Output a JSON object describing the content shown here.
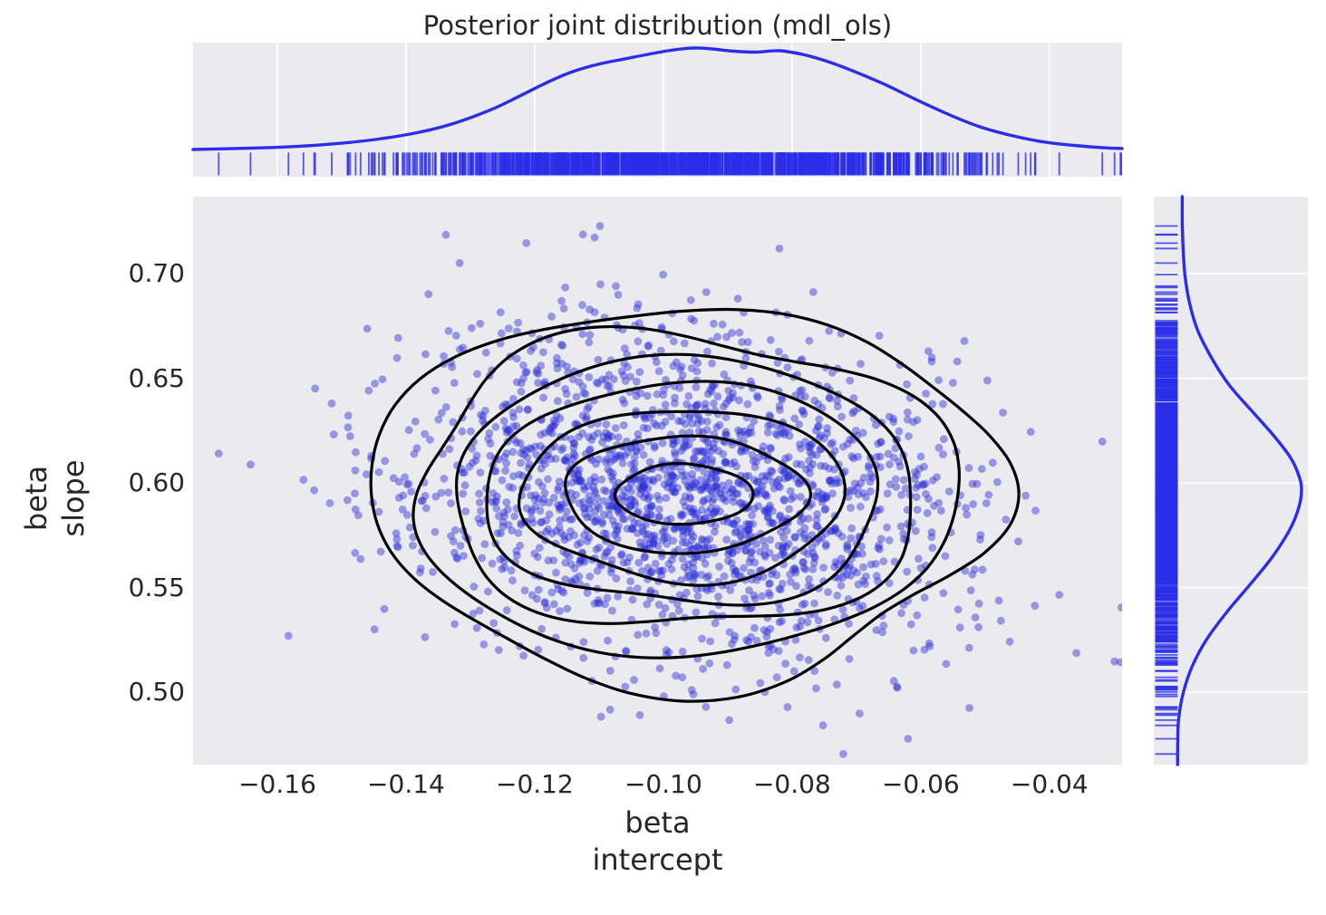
{
  "title": "Posterior joint distribution (mdl_ols)",
  "colors": {
    "figure_background": "#ffffff",
    "axes_background": "#ebebef",
    "gridline": "#ffffff",
    "kde_line_blue": "#2a2de9",
    "rug_blue": "#2a2de9",
    "scatter_blue": "#2b2fd6",
    "contour_black": "#000000",
    "text": "#262626"
  },
  "chart_data": {
    "type": "scatter",
    "subtype": "seaborn-jointplot: posterior scatter + 2D KDE contours, marginal KDE curves with rug plots",
    "title": "Posterior joint distribution (mdl_ols)",
    "x_axis": {
      "label": "beta intercept",
      "label_lines": [
        "beta",
        "intercept"
      ],
      "tick_values": [
        -0.16,
        -0.14,
        -0.12,
        -0.1,
        -0.08,
        -0.06,
        -0.04
      ],
      "tick_labels": [
        "−0.16",
        "−0.14",
        "−0.12",
        "−0.10",
        "−0.08",
        "−0.06",
        "−0.04"
      ],
      "range": [
        -0.1731,
        -0.0287
      ],
      "grid": "vertical white gridlines in top marginal axes only"
    },
    "y_axis": {
      "label": "beta slope",
      "label_lines": [
        "beta",
        "slope"
      ],
      "tick_values": [
        0.5,
        0.55,
        0.6,
        0.65,
        0.7
      ],
      "tick_labels": [
        "0.50",
        "0.55",
        "0.60",
        "0.65",
        "0.70"
      ],
      "range": [
        0.4654,
        0.7368
      ],
      "grid": "horizontal white gridlines in right marginal axes only"
    },
    "posterior_samples": {
      "n": 2000,
      "mean": [
        -0.0968,
        0.594
      ],
      "sd": [
        0.0212,
        0.0385
      ],
      "correlation": -0.15,
      "seed": 20,
      "point_radius_px": 4.4,
      "point_opacity": 0.45
    },
    "contours": {
      "center": [
        -0.0968,
        0.5945
      ],
      "n_levels": 7,
      "levels": [
        {
          "rx": 0.0106,
          "ry": 0.0143,
          "amp": 0.03,
          "ph": [
            0.8,
            2.0,
            4.4
          ]
        },
        {
          "rx": 0.0187,
          "ry": 0.0277,
          "amp": 0.042,
          "ph": [
            2.1,
            0.7,
            1.9
          ]
        },
        {
          "rx": 0.0251,
          "ry": 0.0411,
          "amp": 0.048,
          "ph": [
            3.8,
            2.9,
            0.4
          ]
        },
        {
          "rx": 0.031,
          "ry": 0.0533,
          "amp": 0.055,
          "ph": [
            5.2,
            4.1,
            2.2
          ]
        },
        {
          "rx": 0.0363,
          "ry": 0.0649,
          "amp": 0.06,
          "ph": [
            0.3,
            5.0,
            3.6
          ]
        },
        {
          "rx": 0.0423,
          "ry": 0.0771,
          "amp": 0.066,
          "ph": [
            1.6,
            3.3,
            5.1
          ]
        },
        {
          "rx": 0.0486,
          "ry": 0.09,
          "amp": 0.072,
          "ph": [
            2.9,
            1.4,
            0.9
          ]
        }
      ]
    },
    "kde_top": {
      "x": [
        -0.1731,
        -0.1665,
        -0.1594,
        -0.1524,
        -0.1453,
        -0.1383,
        -0.1327,
        -0.127,
        -0.1228,
        -0.1186,
        -0.1144,
        -0.1101,
        -0.1059,
        -0.1024,
        -0.0988,
        -0.0953,
        -0.0925,
        -0.089,
        -0.0855,
        -0.082,
        -0.0784,
        -0.0749,
        -0.0707,
        -0.0657,
        -0.0608,
        -0.0559,
        -0.051,
        -0.046,
        -0.0411,
        -0.0362,
        -0.0319,
        -0.0287
      ],
      "height": [
        0.004,
        0.013,
        0.027,
        0.053,
        0.097,
        0.168,
        0.257,
        0.389,
        0.513,
        0.646,
        0.761,
        0.841,
        0.894,
        0.938,
        0.978,
        1.0,
        0.991,
        0.969,
        0.96,
        0.973,
        0.938,
        0.876,
        0.779,
        0.646,
        0.496,
        0.354,
        0.23,
        0.142,
        0.08,
        0.044,
        0.022,
        0.013
      ]
    },
    "kde_right": {
      "y": [
        0.7368,
        0.7247,
        0.7117,
        0.6987,
        0.6857,
        0.6727,
        0.6597,
        0.6468,
        0.6338,
        0.6229,
        0.6121,
        0.6035,
        0.597,
        0.5883,
        0.5775,
        0.5645,
        0.5515,
        0.5385,
        0.5255,
        0.5126,
        0.4996,
        0.4866,
        0.4736,
        0.4654
      ],
      "height": [
        0.037,
        0.037,
        0.044,
        0.059,
        0.096,
        0.162,
        0.272,
        0.412,
        0.603,
        0.765,
        0.904,
        0.971,
        0.993,
        0.971,
        0.897,
        0.757,
        0.581,
        0.397,
        0.235,
        0.118,
        0.044,
        0.007,
        0.0,
        0.0
      ]
    },
    "rug": {
      "n": 1400,
      "band_fraction": 0.18
    }
  }
}
